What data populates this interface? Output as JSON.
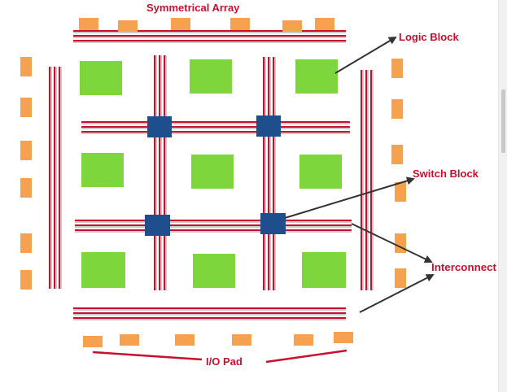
{
  "labels": {
    "title": "Symmetrical Array",
    "logic_block": "Logic Block",
    "switch_block": "Switch Block",
    "interconnect": "Interconnect",
    "io_pad": "I/O Pad"
  },
  "colors": {
    "io_pad": "#f5a14f",
    "logic_block": "#7dd63c",
    "switch_block": "#1f4e8c",
    "wire_red": "#c8102e",
    "wire_gray": "#b9b9b9",
    "label": "#c8102e",
    "arrow": "#333333"
  }
}
